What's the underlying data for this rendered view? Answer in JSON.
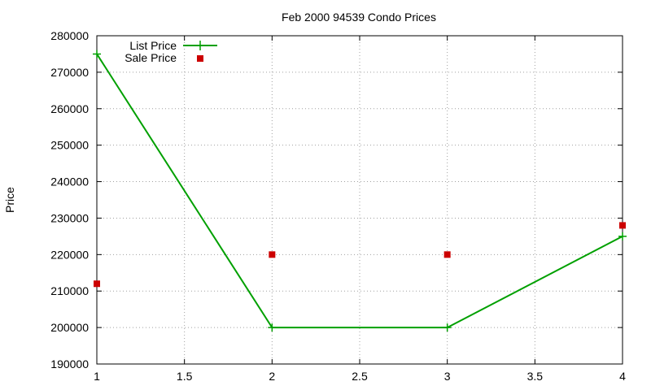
{
  "chart_data": {
    "type": "line",
    "title": "Feb 2000 94539 Condo Prices",
    "xlabel": "",
    "ylabel": "Price",
    "xlim": [
      1,
      4
    ],
    "ylim": [
      190000,
      280000
    ],
    "xticks": [
      "1",
      "1.5",
      "2",
      "2.5",
      "3",
      "3.5",
      "4"
    ],
    "yticks": [
      "190000",
      "200000",
      "210000",
      "220000",
      "230000",
      "240000",
      "250000",
      "260000",
      "270000",
      "280000"
    ],
    "grid": true,
    "legend_position": "top-left",
    "series": [
      {
        "name": "List Price",
        "style": "line-and-plus",
        "color": "#00a000",
        "x": [
          1,
          2,
          3,
          4
        ],
        "y": [
          275000,
          200000,
          200000,
          225000
        ]
      },
      {
        "name": "Sale Price",
        "style": "square-markers",
        "color": "#cc0000",
        "x": [
          1,
          2,
          3,
          4
        ],
        "y": [
          212000,
          220000,
          220000,
          228000
        ]
      }
    ]
  }
}
